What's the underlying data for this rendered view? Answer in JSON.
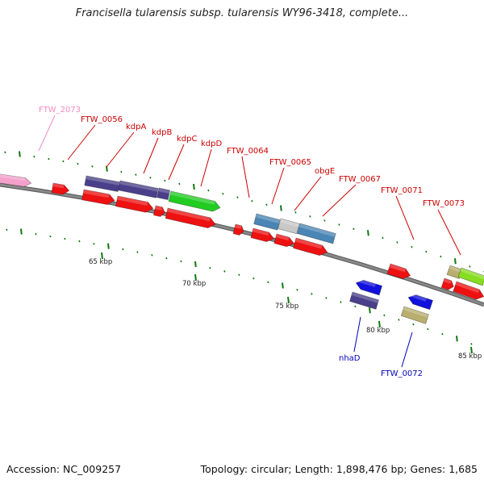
{
  "header": {
    "title": "Francisella tularensis subsp. tularensis WY96-3418, complete..."
  },
  "footer": {
    "accession": "Accession: NC_009257",
    "summary": "Topology: circular; Length: 1,898,476 bp; Genes: 1,685"
  },
  "colors": {
    "red": "#ee1111",
    "purple": "#4a3f8a",
    "green": "#22cc22",
    "steelblue": "#4a85b5",
    "silver": "#c8c8c8",
    "blue": "#1111dd",
    "khaki": "#b8ae6e",
    "lime": "#88dd22",
    "pink": "#f4a0cc",
    "label_red": "#cc0000",
    "label_blue": "#0000bb",
    "label_pink": "#f08cc0",
    "tick": "#117711",
    "backbone": "#888888"
  },
  "scale": {
    "unit": "kbp",
    "ticks": [
      "65 kbp",
      "70 kbp",
      "75 kbp",
      "80 kbp",
      "85 kbp"
    ]
  },
  "genes": [
    {
      "name": "FTW_2073",
      "color_key": "pink",
      "label_color": "label_pink"
    },
    {
      "name": "FTW_0056",
      "color_key": "red",
      "label_color": "label_red"
    },
    {
      "name": "kdpA",
      "color_key": "purple",
      "label_color": "label_red"
    },
    {
      "name": "kdpB",
      "color_key": "purple",
      "label_color": "label_red"
    },
    {
      "name": "kdpC",
      "color_key": "purple",
      "label_color": "label_red"
    },
    {
      "name": "kdpD",
      "color_key": "green",
      "label_color": "label_red"
    },
    {
      "name": "FTW_0064",
      "color_key": "red",
      "label_color": "label_red"
    },
    {
      "name": "FTW_0065",
      "color_key": "steelblue",
      "label_color": "label_red"
    },
    {
      "name": "obgE",
      "color_key": "silver",
      "label_color": "label_red"
    },
    {
      "name": "FTW_0067",
      "color_key": "steelblue",
      "label_color": "label_red"
    },
    {
      "name": "FTW_0071",
      "color_key": "red",
      "label_color": "label_red"
    },
    {
      "name": "FTW_0073",
      "color_key": "khaki",
      "label_color": "label_red"
    },
    {
      "name": "nhaD",
      "color_key": "purple",
      "label_color": "label_blue"
    },
    {
      "name": "FTW_0072",
      "color_key": "khaki",
      "label_color": "label_blue"
    }
  ]
}
